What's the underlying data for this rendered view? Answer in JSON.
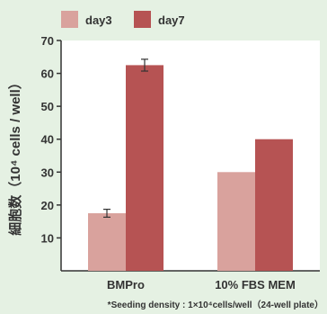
{
  "chart_data": {
    "type": "bar",
    "categories": [
      "BMPro",
      "10% FBS MEM"
    ],
    "series": [
      {
        "name": "day3",
        "values": [
          17.5,
          30
        ],
        "errors": [
          1.2,
          0
        ],
        "color": "#d9a29d"
      },
      {
        "name": "day7",
        "values": [
          62.5,
          40
        ],
        "errors": [
          1.8,
          0
        ],
        "color": "#b65353"
      }
    ],
    "ylabel": "細胞数（10⁴ cells / well）",
    "ylim": [
      0,
      70
    ],
    "yticks": [
      10,
      20,
      30,
      40,
      50,
      60,
      70
    ],
    "legend": "top-left",
    "grid": false,
    "footnote": "*Seeding density : 1×10⁴cells/well（24-well plate）"
  }
}
